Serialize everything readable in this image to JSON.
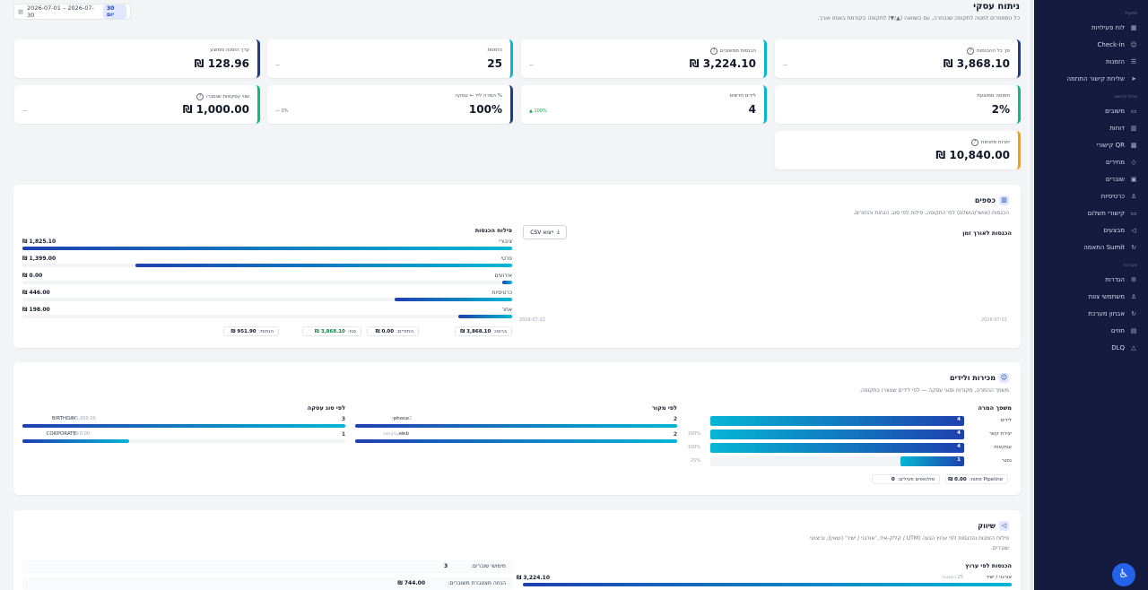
{
  "sidebar": {
    "sections": [
      {
        "title": "תפעול",
        "items": [
          {
            "label": "לוח פעילויות",
            "icon": "calendar-icon",
            "glyph": "▦"
          },
          {
            "label": "Check-in",
            "icon": "user-check-icon",
            "glyph": "☺"
          },
          {
            "label": "הזמנות",
            "icon": "list-icon",
            "glyph": "☰"
          },
          {
            "label": "שליחת קישור התחמה",
            "icon": "send-icon",
            "glyph": "➤"
          }
        ]
      },
      {
        "title": "ניהול ודוחות",
        "items": [
          {
            "label": "משובים",
            "icon": "chat-icon",
            "glyph": "▭"
          },
          {
            "label": "דוחות",
            "icon": "chart-icon",
            "glyph": "▥"
          },
          {
            "label": "קישורי QR",
            "icon": "qr-icon",
            "glyph": "▩"
          },
          {
            "label": "מחירים",
            "icon": "tag-icon",
            "glyph": "◇"
          },
          {
            "label": "שוברים",
            "icon": "gift-icon",
            "glyph": "▣"
          },
          {
            "label": "כרטיסיות",
            "icon": "ticket-icon",
            "glyph": "♙"
          },
          {
            "label": "קישורי תשלום",
            "icon": "card-icon",
            "glyph": "▭"
          },
          {
            "label": "מבצעים",
            "icon": "megaphone-icon",
            "glyph": "◁"
          },
          {
            "label": "התאמה Sumit",
            "icon": "refresh-icon",
            "glyph": "↻"
          }
        ]
      },
      {
        "title": "מערכת",
        "items": [
          {
            "label": "הגדרות",
            "icon": "gear-icon",
            "glyph": "⚙"
          },
          {
            "label": "משתמשי צוות",
            "icon": "user-icon",
            "glyph": "♙"
          },
          {
            "label": "אבחון מערכת",
            "icon": "refresh-icon",
            "glyph": "↻"
          },
          {
            "label": "חוזים",
            "icon": "document-icon",
            "glyph": "▤"
          },
          {
            "label": "DLQ",
            "icon": "warning-icon",
            "glyph": "△"
          }
        ]
      }
    ]
  },
  "header": {
    "title": "ניתוח עסקי",
    "subtitle": "כל המספרים למטה לתקופה שנבחרה, עם השוואה (▲/▼) לתקופה הקודמת באותו אורך.",
    "date_range": "2026-07-01 – 2026-07-30",
    "range_badge": "30 יום"
  },
  "kpis": [
    {
      "label": "סך כל ההכנסות",
      "value": "3,868.10 ₪",
      "delta": "—",
      "help": true,
      "accent": "#1e3a8a"
    },
    {
      "label": "הכנסות ממשובים",
      "value": "3,224.10 ₪",
      "delta": "—",
      "help": true,
      "accent": "#06b6d4"
    },
    {
      "label": "הזמנות",
      "value": "25",
      "delta": "—",
      "help": false,
      "accent": "#06b6d4"
    },
    {
      "label": "ערך הזמנה ממוצע",
      "value": "128.96 ₪",
      "delta": "",
      "help": false,
      "accent": "#1e3a8a"
    },
    {
      "label": "תפוסה ממוצעת",
      "value": "2%",
      "delta": "",
      "help": false,
      "accent": "#10b981"
    },
    {
      "label": "לידים חדשים",
      "value": "4",
      "delta": "100% ▲",
      "help": false,
      "accent": "#06b6d4"
    },
    {
      "label": "% המרה ליד ← עסקה",
      "value": "100%",
      "delta": "0% —",
      "help": false,
      "accent": "#1e3a8a"
    },
    {
      "label": "שווי עסקאות שנסגרו",
      "value": "1,000.00 ₪",
      "delta": "—",
      "help": true,
      "accent": "#10b981"
    },
    {
      "label": "יתרות פתוחות",
      "value": "10,840.00 ₪",
      "delta": "",
      "help": true,
      "accent": "#f59e0b"
    }
  ],
  "finance": {
    "title": "כספים",
    "desc": "הכנסות (אושר/הושלם) לפי התקופה, פילוח לפי סוג, הנחות והחזרים.",
    "over_time_title": "הכנסות לאורך זמן",
    "csv_label": "ייצוא CSV",
    "x_start": "2026-07-01",
    "x_end": "2026-07-22",
    "breakdown_title": "פילוח הכנסות",
    "breakdown": [
      {
        "label": "ציבורי",
        "value": "1,825.10 ₪",
        "fraction": 1.0
      },
      {
        "label": "פרטי",
        "value": "1,399.00 ₪",
        "fraction": 0.77
      },
      {
        "label": "אירועים",
        "value": "0.00 ₪",
        "fraction": 0.02
      },
      {
        "label": "כרטיסיות",
        "value": "446.00 ₪",
        "fraction": 0.24
      },
      {
        "label": "אחר",
        "value": "198.00 ₪",
        "fraction": 0.11
      }
    ],
    "totals": [
      {
        "label": "ברוטו:",
        "value": "3,868.10 ₪"
      },
      {
        "label": "החזרים:",
        "value": "0.00 ₪"
      },
      {
        "label": "נטו:",
        "value": "3,868.10 ₪"
      },
      {
        "label": "הנחות:",
        "value": "951.90 ₪"
      }
    ]
  },
  "sales": {
    "title": "מכירות ולידים",
    "desc": "משפך ההמרה, מקורות וסוגי עסקה — לפי לידים שנוצרו בתקופה.",
    "funnel_title": "משפך המרה",
    "funnel": [
      {
        "label": "לידים",
        "count": "4",
        "pct": "",
        "fraction": 1.0
      },
      {
        "label": "יצירת קשר",
        "count": "4",
        "pct": "100%",
        "fraction": 1.0
      },
      {
        "label": "עסקאות",
        "count": "4",
        "pct": "100%",
        "fraction": 1.0
      },
      {
        "label": "נסגר",
        "count": "1",
        "pct": "25%",
        "fraction": 0.25
      }
    ],
    "pipeline": [
      {
        "label": "Pipeline פתוח:",
        "value": "0.00 ₪"
      },
      {
        "label": "פולואפים פעילים:",
        "value": "0"
      }
    ],
    "source_title": "לפי מקור",
    "sources": [
      {
        "label": "phone",
        "sub": "2 עסקאות",
        "count": "2",
        "fraction": 1.0
      },
      {
        "label": "web",
        "sub": "2 עסקאות",
        "count": "2",
        "fraction": 1.0
      }
    ],
    "deal_type_title": "לפי סוג עסקה",
    "deal_types": [
      {
        "label": "BIRTHDAY",
        "sub": "1,000.00 ₪",
        "count": "3",
        "fraction": 1.0
      },
      {
        "label": "CORPORATE",
        "sub": "0.00 ₪",
        "count": "1",
        "fraction": 0.33
      }
    ]
  },
  "marketing": {
    "title": "שיווק",
    "desc_line1": "פילוח הזמנות והכנסות לפי ערוץ הגעה (UTM / קליק-איד, 'אורגני / ישיר' כשאין), וביצועי",
    "desc_line2": "שוברים.",
    "by_channel_title": "הכנסות לפי ערוץ",
    "channels": [
      {
        "label": "אורגני / ישיר",
        "sub": "25 הזמנות",
        "value": "3,224.10 ₪",
        "fraction": 1.0
      }
    ],
    "voucher_stats": [
      {
        "label": "מימושי שוברים:",
        "value": "3"
      },
      {
        "label": "הנחה מצטברת משוברים:",
        "value": "744.00 ₪"
      }
    ]
  }
}
